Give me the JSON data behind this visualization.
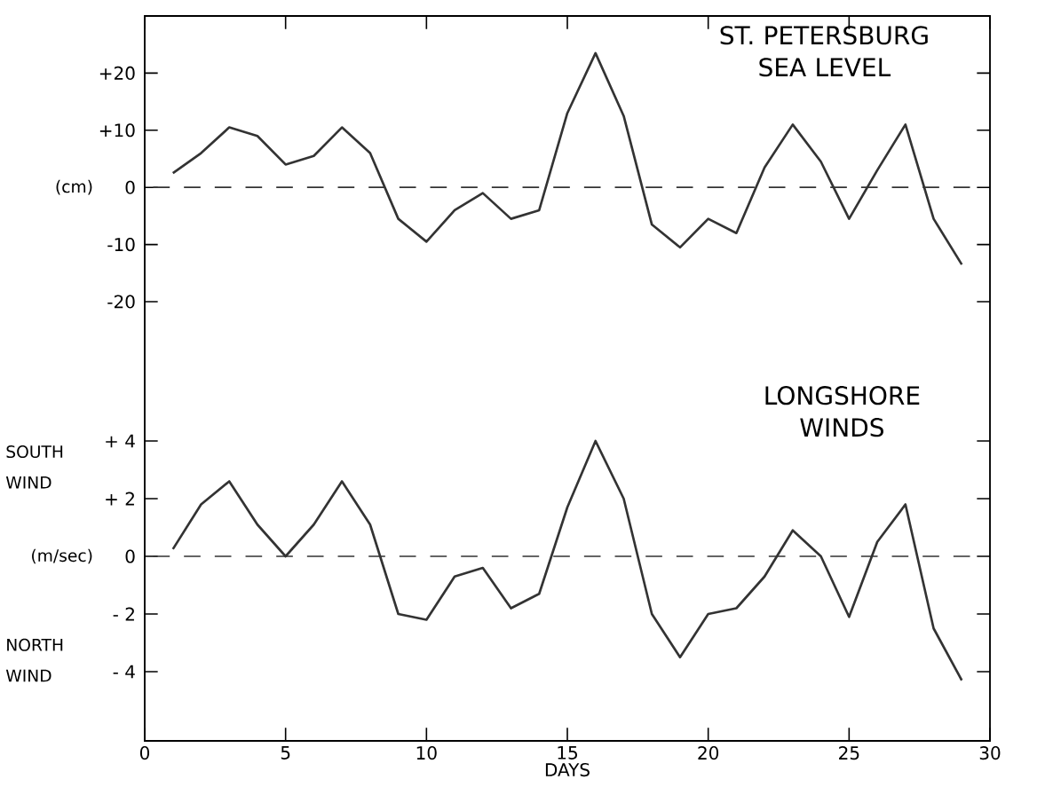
{
  "chart_data": [
    {
      "type": "line",
      "title": "ST. PETERSBURG SEA LEVEL",
      "ylabel": "(cm)",
      "color": "#333333",
      "line_style": "solid",
      "x": [
        1,
        2,
        3,
        4,
        5,
        6,
        7,
        8,
        9,
        10,
        11,
        12,
        13,
        14,
        15,
        16,
        17,
        18,
        19,
        20,
        21,
        22,
        23,
        24,
        25,
        26,
        27,
        28,
        29
      ],
      "values": [
        2.5,
        6,
        10.5,
        9,
        4,
        5.5,
        10.5,
        6,
        -5.5,
        -9.5,
        -4,
        -1,
        -5.5,
        -4,
        13,
        23.5,
        12.5,
        -6.5,
        -10.5,
        -5.5,
        -8,
        3.5,
        11,
        4.5,
        -5.5,
        3,
        11,
        -5.5,
        -13.5
      ],
      "xlim": [
        0,
        30
      ],
      "xticks": [
        0,
        5,
        10,
        15,
        20,
        25,
        30
      ],
      "tick_labels": "y",
      "ylim": [
        -20,
        30
      ],
      "yticks": [
        {
          "value": 20,
          "label": "+20"
        },
        {
          "value": 10,
          "label": "+10"
        },
        0,
        {
          "value": -10,
          "label": "-10"
        },
        {
          "value": -20,
          "label": "-20"
        }
      ],
      "ref_lines": [
        {
          "axis": "y",
          "value": 0,
          "line_style": "dashed"
        }
      ]
    },
    {
      "type": "line",
      "title": "LONGSHORE WINDS",
      "ylabel": "(m/sec)",
      "xlabel": "DAYS",
      "color": "#333333",
      "line_style": "solid",
      "annotations": [
        "SOUTH WIND",
        "NORTH WIND"
      ],
      "x": [
        1,
        2,
        3,
        4,
        5,
        6,
        7,
        8,
        9,
        10,
        11,
        12,
        13,
        14,
        15,
        16,
        17,
        18,
        19,
        20,
        21,
        22,
        23,
        24,
        25,
        26,
        27,
        28,
        29
      ],
      "values": [
        0.25,
        1.8,
        2.6,
        1.1,
        0,
        1.1,
        2.6,
        1.1,
        -2,
        -2.2,
        -0.7,
        -0.4,
        -1.8,
        -1.3,
        1.7,
        4,
        2,
        -2,
        -3.5,
        -2,
        -1.8,
        -0.7,
        0.9,
        0,
        -2.1,
        0.5,
        1.8,
        -2.5,
        -4.3
      ],
      "xlim": [
        0,
        30
      ],
      "xticks": [
        0,
        5,
        10,
        15,
        20,
        25,
        30
      ],
      "ylim": [
        -6.4,
        4
      ],
      "yticks": [
        {
          "value": 4,
          "label": "+ 4"
        },
        {
          "value": 2,
          "label": "+ 2"
        },
        0,
        {
          "value": -2,
          "label": "- 2"
        },
        {
          "value": -4,
          "label": "- 4"
        }
      ],
      "ref_lines": [
        {
          "axis": "y",
          "value": 0,
          "line_style": "dashed"
        }
      ]
    }
  ]
}
